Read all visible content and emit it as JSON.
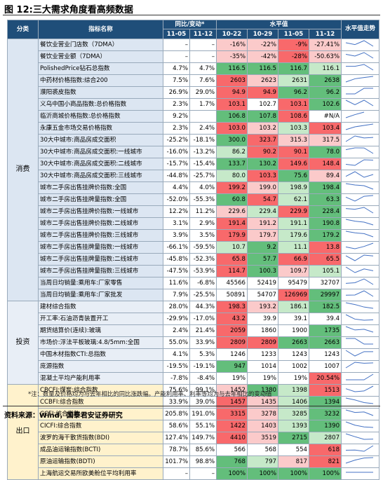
{
  "title": "图 12:三大需求角度看高频数据",
  "header": {
    "category": "分类",
    "name": "指标名称",
    "yoy": "同比/变动*",
    "level": "水平值",
    "trend": "水平值走势",
    "yoy_dates": [
      "11-05",
      "11-12"
    ],
    "level_dates": [
      "10-22",
      "10-29",
      "11-05",
      "11-12"
    ]
  },
  "groups": [
    {
      "name": "消费",
      "color": "#dce6f2",
      "rows": [
        {
          "name": "餐饮业营业门店数（7DMA）",
          "yoy": [
            "–",
            "–"
          ],
          "levels": [
            "-16%",
            "-22%",
            "-9%",
            "-27.41%"
          ],
          "colors": [
            "#fbcaca",
            "#fbcaca",
            "#f8696b",
            "#fbcaca"
          ]
        },
        {
          "name": "餐饮业营业额（7DMA）",
          "yoy": [
            "–",
            "–"
          ],
          "levels": [
            "-35%",
            "-42%",
            "-28%",
            "-50.63%"
          ],
          "colors": [
            "#fbcaca",
            "#fbcaca",
            "#f8696b",
            "#fbcaca"
          ]
        },
        {
          "name": "PolishedPrice钻石总指数",
          "yoy": [
            "4.7%",
            "4.7%"
          ],
          "levels": [
            "116.5",
            "116.5",
            "116.7",
            "116.1"
          ],
          "colors": [
            "#63be7b",
            "#63be7b",
            "#63be7b",
            "#c6e9c9"
          ]
        },
        {
          "name": "中药材价格指数:综合200",
          "yoy": [
            "7.5%",
            "7.6%"
          ],
          "levels": [
            "2603",
            "2623",
            "2631",
            "2638"
          ],
          "colors": [
            "#f8696b",
            "#fbcaca",
            "#c6e9c9",
            "#63be7b"
          ]
        },
        {
          "name": "濮阳裘皮指数",
          "yoy": [
            "26.9%",
            "29.0%"
          ],
          "levels": [
            "94.9",
            "94.9",
            "96.2",
            "96.2"
          ],
          "colors": [
            "#f8696b",
            "#f8696b",
            "#63be7b",
            "#63be7b"
          ]
        },
        {
          "name": "义乌中国小商品指数:总价格指数",
          "yoy": [
            "2.3%",
            "1.7%"
          ],
          "levels": [
            "103.1",
            "102.7",
            "103.1",
            "102.6"
          ],
          "colors": [
            "#f8696b",
            "#ffffff",
            "#f8696b",
            "#63be7b"
          ]
        },
        {
          "name": "临沂商城价格指数:总价格指数",
          "yoy": [
            "9.2%",
            ""
          ],
          "levels": [
            "106.8",
            "107.8",
            "108.6",
            "#N/A"
          ],
          "colors": [
            "#63be7b",
            "#63be7b",
            "#f8696b",
            "#ffffff"
          ]
        },
        {
          "name": "永康五金市场交易价格指数",
          "yoy": [
            "2.3%",
            "2.4%"
          ],
          "levels": [
            "103.0",
            "103.2",
            "103.3",
            "103.4"
          ],
          "colors": [
            "#f8696b",
            "#fbcaca",
            "#c6e9c9",
            "#f8696b"
          ]
        },
        {
          "name": "30大中城市:商品房成交面积",
          "yoy": [
            "-25.2%",
            "-18.1%"
          ],
          "levels": [
            "300.0",
            "323.7",
            "315.3",
            "317.5"
          ],
          "colors": [
            "#63be7b",
            "#f8696b",
            "#fbcaca",
            "#fbcaca"
          ]
        },
        {
          "name": "30大中城市:商品房成交面积:一线城市",
          "yoy": [
            "-16.0%",
            "-13.2%"
          ],
          "levels": [
            "86.2",
            "90.2",
            "90.1",
            "78.0"
          ],
          "colors": [
            "#c6e9c9",
            "#f8696b",
            "#f8696b",
            "#63be7b"
          ]
        },
        {
          "name": "30大中城市:商品房成交面积:二线城市",
          "yoy": [
            "-15.7%",
            "-15.4%"
          ],
          "levels": [
            "133.7",
            "130.2",
            "149.6",
            "148.4"
          ],
          "colors": [
            "#63be7b",
            "#63be7b",
            "#f8696b",
            "#f8696b"
          ]
        },
        {
          "name": "30大中城市:商品房成交面积:三线城市",
          "yoy": [
            "-44.8%",
            "-25.7%"
          ],
          "levels": [
            "80.0",
            "103.3",
            "75.6",
            "89.4"
          ],
          "colors": [
            "#c6e9c9",
            "#f8696b",
            "#63be7b",
            "#fbcaca"
          ]
        },
        {
          "name": "城市二手房出售挂牌价指数:全国",
          "yoy": [
            "4.4%",
            "4.0%"
          ],
          "levels": [
            "199.2",
            "199.0",
            "198.9",
            "198.4"
          ],
          "colors": [
            "#f8696b",
            "#fbcaca",
            "#c6e9c9",
            "#63be7b"
          ]
        },
        {
          "name": "城市二手房出售挂牌量指数:全国",
          "yoy": [
            "-52.0%",
            "-55.3%"
          ],
          "levels": [
            "60.8",
            "54.7",
            "62.1",
            "63.3"
          ],
          "colors": [
            "#63be7b",
            "#f8696b",
            "#c6e9c9",
            "#63be7b"
          ]
        },
        {
          "name": "城市二手房出售挂牌价指数:一线城市",
          "yoy": [
            "12.2%",
            "11.2%"
          ],
          "levels": [
            "229.6",
            "229.4",
            "229.9",
            "228.4"
          ],
          "colors": [
            "#fbcaca",
            "#c6e9c9",
            "#f8696b",
            "#63be7b"
          ]
        },
        {
          "name": "城市二手房出售挂牌价指数:二线城市",
          "yoy": [
            "3.1%",
            "2.9%"
          ],
          "levels": [
            "191.4",
            "191.2",
            "191.1",
            "190.8"
          ],
          "colors": [
            "#f8696b",
            "#fbcaca",
            "#c6e9c9",
            "#63be7b"
          ]
        },
        {
          "name": "城市二手房出售挂牌价指数:三线城市",
          "yoy": [
            "3.9%",
            "3.5%"
          ],
          "levels": [
            "179.9",
            "179.7",
            "179.6",
            "179.2"
          ],
          "colors": [
            "#f8696b",
            "#fbcaca",
            "#c6e9c9",
            "#63be7b"
          ]
        },
        {
          "name": "城市二手房出售挂牌量指数:一线城市",
          "yoy": [
            "-66.1%",
            "-59.5%"
          ],
          "levels": [
            "10.7",
            "9.2",
            "11.1",
            "13.8"
          ],
          "colors": [
            "#c6e9c9",
            "#63be7b",
            "#c6e9c9",
            "#f8696b"
          ]
        },
        {
          "name": "城市二手房出售挂牌量指数:二线城市",
          "yoy": [
            "-45.8%",
            "-52.3%"
          ],
          "levels": [
            "65.8",
            "57.7",
            "66.9",
            "65.5"
          ],
          "colors": [
            "#f8696b",
            "#63be7b",
            "#f8696b",
            "#f8696b"
          ]
        },
        {
          "name": "城市二手房出售挂牌量指数:三线城市",
          "yoy": [
            "-47.5%",
            "-53.9%"
          ],
          "levels": [
            "114.7",
            "100.3",
            "109.7",
            "105.1"
          ],
          "colors": [
            "#f8696b",
            "#63be7b",
            "#fbcaca",
            "#c6e9c9"
          ]
        },
        {
          "name": "当周日均销量:乘用车:厂家零售",
          "yoy": [
            "11.6%",
            "-6.8%"
          ],
          "levels": [
            "45566",
            "52419",
            "95479",
            "32707"
          ],
          "colors": [
            "#ffffff",
            "#ffffff",
            "#ffffff",
            "#ffffff"
          ]
        },
        {
          "name": "当周日均销量:乘用车:厂家批发",
          "yoy": [
            "7.9%",
            "-25.5%"
          ],
          "levels": [
            "50891",
            "54707",
            "126969",
            "29997"
          ],
          "colors": [
            "#ffffff",
            "#ffffff",
            "#f8696b",
            "#63be7b"
          ]
        }
      ]
    },
    {
      "name": "投资",
      "color": "#e8eef6",
      "rows": [
        {
          "name": "建材综合指数",
          "yoy": [
            "28.0%",
            "44.3%"
          ],
          "levels": [
            "198.3",
            "193.2",
            "186.1",
            "182.5"
          ],
          "colors": [
            "#f8696b",
            "#fbcaca",
            "#c6e9c9",
            "#63be7b"
          ]
        },
        {
          "name": "开工率:石油沥青装置开工",
          "yoy": [
            "-29.9%",
            "-17.0%"
          ],
          "levels": [
            "43.2",
            "39.9",
            "39.1",
            "39.4"
          ],
          "colors": [
            "#f8696b",
            "#ffffff",
            "#ffffff",
            "#ffffff"
          ]
        },
        {
          "name": "期货结算价(连续):玻璃",
          "yoy": [
            "2.4%",
            "21.4%"
          ],
          "levels": [
            "2059",
            "1860",
            "1900",
            "1735"
          ],
          "colors": [
            "#f8696b",
            "#ffffff",
            "#ffffff",
            "#63be7b"
          ]
        },
        {
          "name": "市场价:浮法平板玻璃:4.8/5mm:全国",
          "yoy": [
            "55.0%",
            "33.9%"
          ],
          "levels": [
            "2809",
            "2809",
            "2663",
            "2663"
          ],
          "colors": [
            "#f8696b",
            "#f8696b",
            "#63be7b",
            "#63be7b"
          ]
        },
        {
          "name": "中国木材指数CTI:总指数",
          "yoy": [
            "4.1%",
            "5.3%"
          ],
          "levels": [
            "1246",
            "1233",
            "1243",
            "1243"
          ],
          "colors": [
            "#ffffff",
            "#ffffff",
            "#ffffff",
            "#ffffff"
          ]
        },
        {
          "name": "庞源指数",
          "yoy": [
            "-19.5%",
            "-19.1%"
          ],
          "levels": [
            "947",
            "1014",
            "1002",
            "1007"
          ],
          "colors": [
            "#63be7b",
            "#ffffff",
            "#ffffff",
            "#ffffff"
          ]
        },
        {
          "name": "混凝土平均产能利用率",
          "yoy": [
            "-7.8%",
            "-8.4%"
          ],
          "levels": [
            "19%",
            "19%",
            "19%",
            "20.54%"
          ],
          "colors": [
            "#ffffff",
            "#ffffff",
            "#ffffff",
            "#f8696b"
          ]
        }
      ]
    },
    {
      "name": "出口",
      "color": "#fff2cc",
      "rows": [
        {
          "name": "CBCFI:煤炭:综合指数",
          "yoy": [
            "75.6%",
            "99.1%"
          ],
          "levels": [
            "1452",
            "1380",
            "1398",
            "1513"
          ],
          "colors": [
            "#fbcaca",
            "#63be7b",
            "#c6e9c9",
            "#f8696b"
          ]
        },
        {
          "name": "CCBFI:综合指数",
          "yoy": [
            "33.9%",
            "39.0%"
          ],
          "levels": [
            "1457",
            "1435",
            "1406",
            "1394"
          ],
          "colors": [
            "#f8696b",
            "#fbcaca",
            "#c6e9c9",
            "#63be7b"
          ]
        },
        {
          "name": "CCFI:综合指数",
          "yoy": [
            "205.8%",
            "191.0%"
          ],
          "levels": [
            "3315",
            "3278",
            "3285",
            "3232"
          ],
          "colors": [
            "#f8696b",
            "#fbcaca",
            "#c6e9c9",
            "#63be7b"
          ]
        },
        {
          "name": "CICFI:综合指数",
          "yoy": [
            "58.6%",
            "55.1%"
          ],
          "levels": [
            "1422",
            "1403",
            "1393",
            "1390"
          ],
          "colors": [
            "#f8696b",
            "#fbcaca",
            "#c6e9c9",
            "#63be7b"
          ]
        },
        {
          "name": "波罗的海干散货指数(BDI)",
          "yoy": [
            "127.4%",
            "149.7%"
          ],
          "levels": [
            "4410",
            "3519",
            "2715",
            "2807"
          ],
          "colors": [
            "#f8696b",
            "#fbcaca",
            "#63be7b",
            "#c6e9c9"
          ]
        },
        {
          "name": "成品油运输指数(BCTI)",
          "yoy": [
            "78.7%",
            "85.6%"
          ],
          "levels": [
            "566",
            "568",
            "554",
            "618"
          ],
          "colors": [
            "#ffffff",
            "#ffffff",
            "#ffffff",
            "#f8696b"
          ]
        },
        {
          "name": "原油运输指数(BDTI)",
          "yoy": [
            "101.7%",
            "98.8%"
          ],
          "levels": [
            "768",
            "797",
            "817",
            "821"
          ],
          "colors": [
            "#63be7b",
            "#c6e9c9",
            "#fbcaca",
            "#f8696b"
          ]
        },
        {
          "name": "上海航运交易所欧美舱位平均利用率",
          "yoy": [
            "–",
            "–"
          ],
          "levels": [
            "100%",
            "100%",
            "100%",
            "100%"
          ],
          "colors": [
            "#63be7b",
            "#63be7b",
            "#63be7b",
            "#63be7b"
          ]
        }
      ]
    }
  ],
  "note": "*注：数量及价格均为与去年相比的同比涨跌幅。产能利用率、利率等均为与去年相比的变动值",
  "source": "资料来源：Wind，国泰君安证券研究"
}
